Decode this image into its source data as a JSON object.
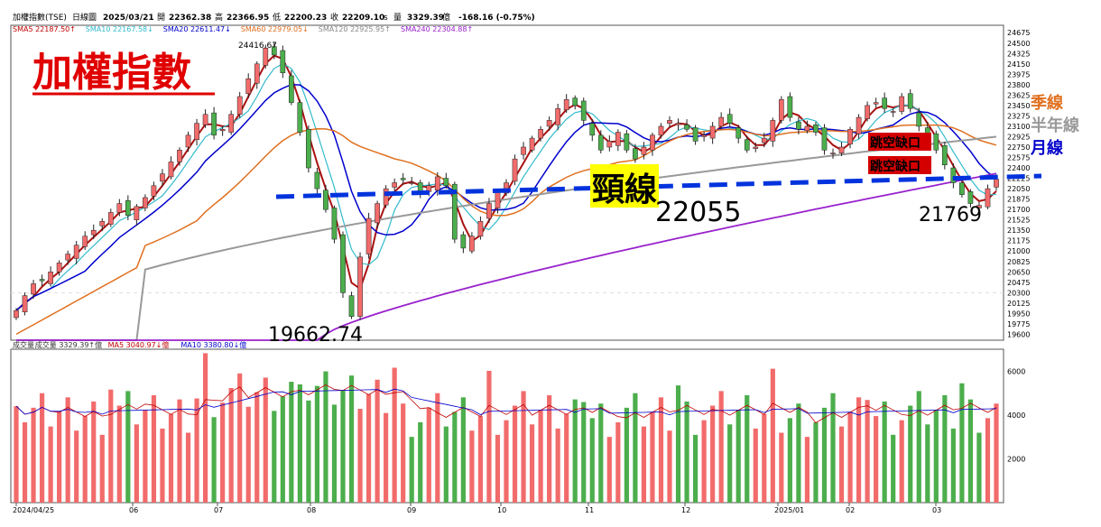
{
  "header": {
    "name": "加權指數(TSE)",
    "period": "日線圖",
    "date": "2025/03/21",
    "open_label": "開",
    "open": "22362.38",
    "high_label": "高",
    "high": "22366.95",
    "low_label": "低",
    "low": "22200.23",
    "close_label": "收",
    "close": "22209.10",
    "unit_s": "s",
    "vol_label": "量",
    "vol": "3329.39",
    "vol_unit": "億",
    "change": "-168.16 (-0.75%)"
  },
  "sma_legend": [
    {
      "text": "SMA5 22187.50↑",
      "color": "#c00000"
    },
    {
      "text": "SMA10 22167.58↓",
      "color": "#33bbcc"
    },
    {
      "text": "SMA20 22611.47↓",
      "color": "#0000cc"
    },
    {
      "text": "SMA60 22979.05↓",
      "color": "#e07020"
    },
    {
      "text": "SMA120 22925.95↑",
      "color": "#888888"
    },
    {
      "text": "SMA240 22304.88↑",
      "color": "#9922cc"
    }
  ],
  "vol_legend": [
    {
      "text": "成交量",
      "color": "#333333"
    },
    {
      "text": "成交量 3329.39↑億",
      "color": "#333333"
    },
    {
      "text": "MA5 3040.97↓億",
      "color": "#c00000"
    },
    {
      "text": "MA10 3380.80↓億",
      "color": "#0000cc"
    }
  ],
  "title_overlay": "加權指數",
  "annotations": {
    "high_label": "24416.67",
    "low_label": "19662.74",
    "neckline_label": "頸線",
    "neckline_value": "22055",
    "recent_low": "21769",
    "gap1": "跳空缺口",
    "gap2": "跳空缺口",
    "legend_quarter": "季線",
    "legend_half": "半年線",
    "legend_month": "月線"
  },
  "colors": {
    "up": "#f26b6b",
    "down": "#4cae4c",
    "neck": "#0033dd",
    "title": "#e00000"
  },
  "chart_data": {
    "type": "line",
    "x_ticks": [
      "2024/04/25",
      "06",
      "07",
      "08",
      "09",
      "10",
      "11",
      "12",
      "2025/01",
      "02",
      "03"
    ],
    "y_ticks": [
      "24675",
      "24500",
      "24325",
      "24150",
      "23975",
      "23800",
      "23625",
      "23450",
      "23275",
      "23100",
      "22925",
      "22750",
      "22575",
      "22400",
      "22225",
      "22050",
      "21875",
      "21700",
      "21525",
      "21350",
      "21175",
      "21000",
      "20825",
      "20650",
      "20475",
      "20300",
      "20125",
      "19950",
      "19775",
      "19600"
    ],
    "ylim": [
      19500,
      24800
    ],
    "vol_ticks": [
      "6000",
      "4000",
      "2000"
    ],
    "vol_ylim": [
      0,
      7000
    ],
    "close_approx": [
      20000,
      20250,
      20450,
      20500,
      20650,
      20800,
      20950,
      21100,
      21250,
      21350,
      21500,
      21650,
      21800,
      21600,
      21750,
      21900,
      22100,
      22300,
      22500,
      22700,
      22950,
      23150,
      23300,
      22950,
      23050,
      23300,
      23600,
      23900,
      24150,
      24416,
      24300,
      24000,
      23500,
      23000,
      22400,
      22050,
      21700,
      21200,
      20300,
      19900,
      20900,
      21550,
      21800,
      22050,
      22150,
      22200,
      22150,
      21950,
      22100,
      22250,
      22100,
      21200,
      21050,
      21250,
      21500,
      21800,
      22000,
      22150,
      22550,
      22750,
      22900,
      23050,
      23200,
      23400,
      23550,
      23450,
      23200,
      22950,
      22700,
      22850,
      23000,
      22700,
      22550,
      22750,
      22950,
      23100,
      23200,
      23150,
      23050,
      22850,
      22950,
      23100,
      23250,
      23150,
      22900,
      22700,
      22750,
      22900,
      23200,
      23550,
      23250,
      23050,
      23100,
      23000,
      22700,
      22650,
      22750,
      23050,
      23250,
      23450,
      23500,
      23400,
      23350,
      23600,
      23400,
      23100,
      22950,
      22700,
      22450,
      22150,
      21950,
      21800,
      21769,
      22050,
      22209
    ],
    "sma240_range": [
      19600,
      22305
    ],
    "neckline": 22055,
    "high": 24416.67,
    "low": 19662.74
  }
}
